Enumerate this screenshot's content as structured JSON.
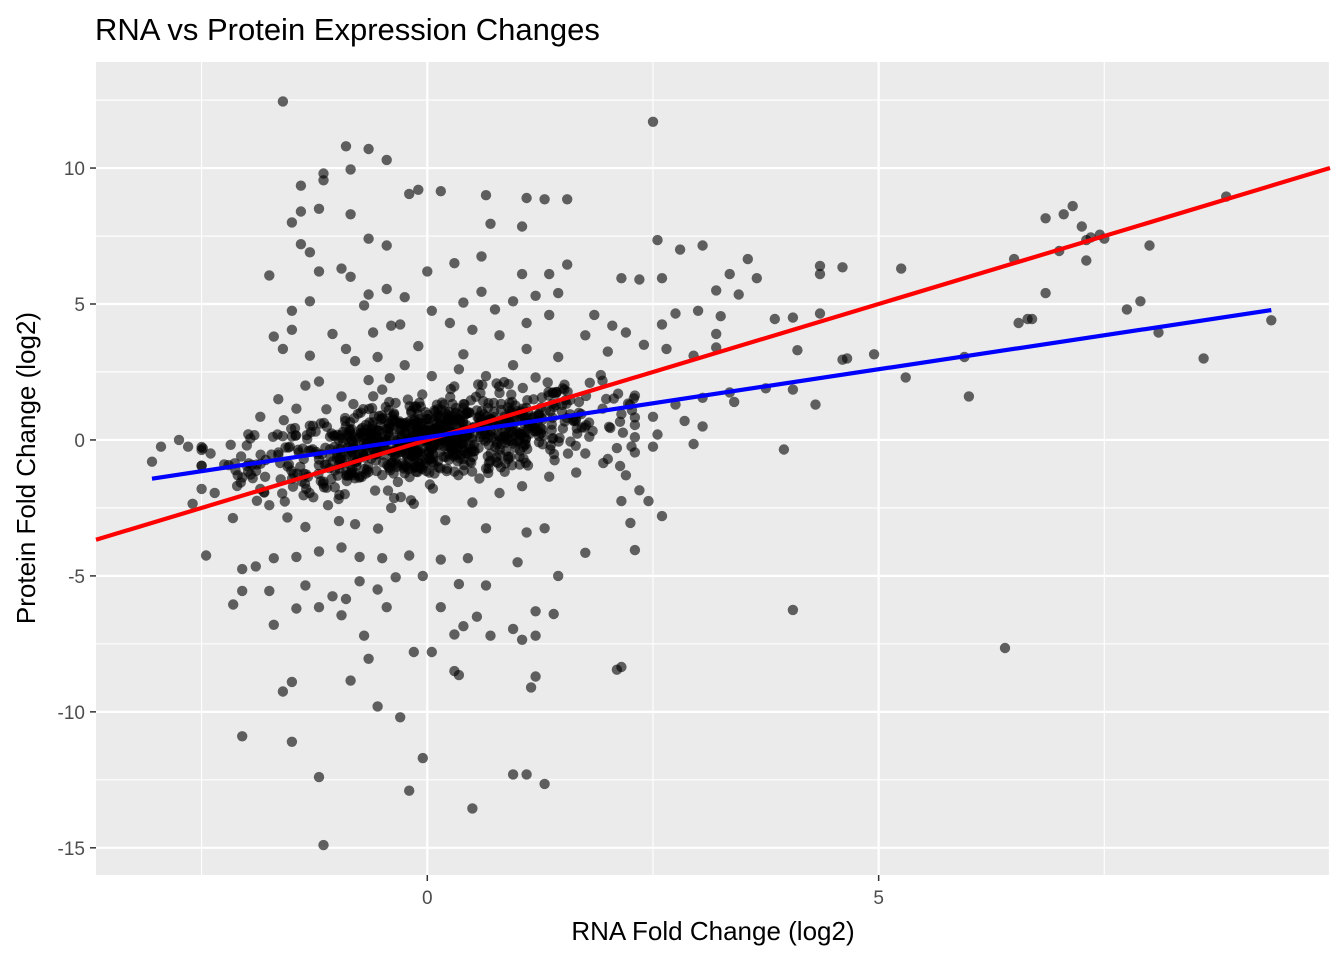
{
  "chart_data": {
    "type": "scatter",
    "title": "RNA vs Protein Expression Changes",
    "xlabel": "RNA Fold Change (log2)",
    "ylabel": "Protein Fold Change (log2)",
    "xlim": [
      -3.67,
      10.0
    ],
    "ylim": [
      -16.0,
      13.9
    ],
    "x_ticks": [
      0,
      5
    ],
    "y_ticks": [
      -15,
      -10,
      -5,
      0,
      5,
      10
    ],
    "grid": true,
    "point_color": "#000000",
    "point_opacity": 0.6,
    "fit_lines": [
      {
        "color": "#ff0000",
        "slope": 1.0,
        "intercept": 0.0,
        "x_range": [
          -3.67,
          10.0
        ]
      },
      {
        "color": "#0000ff",
        "slope": 0.5,
        "intercept": 0.1,
        "x_range": [
          -3.05,
          9.35
        ]
      }
    ],
    "points": [
      [
        -1.6,
        12.45
      ],
      [
        2.5,
        11.7
      ],
      [
        -0.9,
        10.8
      ],
      [
        -0.65,
        10.7
      ],
      [
        -0.45,
        10.3
      ],
      [
        -0.85,
        9.95
      ],
      [
        -1.15,
        9.8
      ],
      [
        -1.15,
        9.55
      ],
      [
        -1.4,
        9.35
      ],
      [
        -0.2,
        9.05
      ],
      [
        -0.1,
        9.2
      ],
      [
        0.15,
        9.15
      ],
      [
        0.65,
        9.0
      ],
      [
        1.1,
        8.9
      ],
      [
        1.3,
        8.85
      ],
      [
        1.55,
        8.85
      ],
      [
        -1.4,
        8.4
      ],
      [
        -1.2,
        8.5
      ],
      [
        -0.85,
        8.3
      ],
      [
        -1.5,
        8.0
      ],
      [
        0.7,
        7.95
      ],
      [
        1.05,
        7.85
      ],
      [
        -1.4,
        7.2
      ],
      [
        -1.3,
        6.9
      ],
      [
        -0.65,
        7.4
      ],
      [
        -0.45,
        7.15
      ],
      [
        2.55,
        7.35
      ],
      [
        2.8,
        7.0
      ],
      [
        3.05,
        7.15
      ],
      [
        3.55,
        6.65
      ],
      [
        -1.2,
        6.2
      ],
      [
        -0.95,
        6.3
      ],
      [
        0.0,
        6.2
      ],
      [
        0.3,
        6.5
      ],
      [
        0.6,
        6.75
      ],
      [
        1.05,
        6.1
      ],
      [
        1.35,
        6.1
      ],
      [
        1.55,
        6.45
      ],
      [
        2.15,
        5.95
      ],
      [
        2.35,
        5.9
      ],
      [
        2.6,
        5.95
      ],
      [
        3.35,
        6.1
      ],
      [
        3.65,
        5.95
      ],
      [
        4.35,
        6.4
      ],
      [
        4.35,
        6.1
      ],
      [
        4.6,
        6.35
      ],
      [
        5.25,
        6.3
      ],
      [
        -1.75,
        6.05
      ],
      [
        -0.85,
        6.0
      ],
      [
        -0.65,
        5.35
      ],
      [
        -0.45,
        5.55
      ],
      [
        -0.25,
        5.25
      ],
      [
        0.4,
        5.05
      ],
      [
        0.6,
        5.45
      ],
      [
        0.95,
        5.1
      ],
      [
        1.2,
        5.3
      ],
      [
        1.45,
        5.4
      ],
      [
        3.2,
        5.5
      ],
      [
        3.45,
        5.35
      ],
      [
        -1.3,
        5.1
      ],
      [
        -1.5,
        4.75
      ],
      [
        -0.7,
        4.95
      ],
      [
        0.05,
        4.75
      ],
      [
        0.25,
        4.3
      ],
      [
        0.75,
        4.8
      ],
      [
        1.1,
        4.3
      ],
      [
        1.35,
        4.6
      ],
      [
        1.85,
        4.6
      ],
      [
        2.05,
        4.2
      ],
      [
        2.75,
        4.65
      ],
      [
        3.0,
        4.75
      ],
      [
        3.25,
        4.55
      ],
      [
        3.85,
        4.45
      ],
      [
        4.05,
        4.5
      ],
      [
        4.35,
        4.65
      ],
      [
        -1.7,
        3.8
      ],
      [
        -1.5,
        4.05
      ],
      [
        -1.05,
        3.9
      ],
      [
        -0.6,
        3.95
      ],
      [
        -0.4,
        4.2
      ],
      [
        -0.3,
        4.25
      ],
      [
        0.5,
        4.05
      ],
      [
        0.8,
        3.85
      ],
      [
        1.75,
        3.85
      ],
      [
        2.2,
        3.95
      ],
      [
        2.6,
        4.25
      ],
      [
        3.2,
        3.9
      ],
      [
        -1.6,
        3.35
      ],
      [
        -1.3,
        3.1
      ],
      [
        -0.9,
        3.35
      ],
      [
        -0.55,
        3.05
      ],
      [
        -0.1,
        3.45
      ],
      [
        0.4,
        3.15
      ],
      [
        1.1,
        3.35
      ],
      [
        1.45,
        3.05
      ],
      [
        2.0,
        3.25
      ],
      [
        2.4,
        3.5
      ],
      [
        2.65,
        3.35
      ],
      [
        2.95,
        3.1
      ],
      [
        3.2,
        3.4
      ],
      [
        4.1,
        3.3
      ],
      [
        4.65,
        3.0
      ],
      [
        4.95,
        3.15
      ],
      [
        5.95,
        3.05
      ],
      [
        4.6,
        2.95
      ],
      [
        5.3,
        2.3
      ],
      [
        6.0,
        1.6
      ],
      [
        4.3,
        1.3
      ],
      [
        4.05,
        1.85
      ],
      [
        3.75,
        1.9
      ],
      [
        3.35,
        1.75
      ],
      [
        3.05,
        1.55
      ],
      [
        2.75,
        1.3
      ],
      [
        2.5,
        0.85
      ],
      [
        2.3,
        0.55
      ],
      [
        2.15,
        0.95
      ],
      [
        2.3,
        0.1
      ],
      [
        2.55,
        0.2
      ],
      [
        2.95,
        -0.15
      ],
      [
        3.05,
        0.5
      ],
      [
        2.5,
        -0.25
      ],
      [
        2.1,
        -0.3
      ],
      [
        2.85,
        0.7
      ],
      [
        3.4,
        1.4
      ],
      [
        1.75,
        -0.5
      ],
      [
        2.0,
        -0.7
      ],
      [
        2.2,
        -1.3
      ],
      [
        2.35,
        -1.85
      ],
      [
        2.15,
        -2.25
      ],
      [
        2.45,
        -2.25
      ],
      [
        2.6,
        -2.8
      ],
      [
        2.25,
        -3.05
      ],
      [
        2.3,
        -4.05
      ],
      [
        1.75,
        -4.15
      ],
      [
        1.45,
        -5.0
      ],
      [
        1.1,
        -3.4
      ],
      [
        1.3,
        -3.25
      ],
      [
        1.0,
        -4.5
      ],
      [
        0.65,
        -3.25
      ],
      [
        0.45,
        -4.35
      ],
      [
        0.15,
        -4.4
      ],
      [
        -0.2,
        -4.25
      ],
      [
        -0.5,
        -4.35
      ],
      [
        -0.75,
        -4.3
      ],
      [
        -0.95,
        -3.95
      ],
      [
        -1.2,
        -4.1
      ],
      [
        -1.45,
        -4.3
      ],
      [
        -1.7,
        -4.35
      ],
      [
        -1.9,
        -4.65
      ],
      [
        -2.05,
        -4.75
      ],
      [
        -2.45,
        -4.25
      ],
      [
        -1.75,
        -5.55
      ],
      [
        -2.05,
        -5.55
      ],
      [
        -2.15,
        -6.05
      ],
      [
        -1.7,
        -6.8
      ],
      [
        -1.35,
        -5.35
      ],
      [
        -1.45,
        -6.2
      ],
      [
        -1.05,
        -5.75
      ],
      [
        -1.2,
        -6.15
      ],
      [
        -0.9,
        -5.85
      ],
      [
        -0.95,
        -6.45
      ],
      [
        -0.55,
        -5.5
      ],
      [
        -0.75,
        -5.2
      ],
      [
        -0.35,
        -5.05
      ],
      [
        -0.05,
        -5.0
      ],
      [
        0.35,
        -5.3
      ],
      [
        -0.45,
        -6.15
      ],
      [
        0.15,
        -6.15
      ],
      [
        0.65,
        -5.35
      ],
      [
        0.55,
        -6.5
      ],
      [
        0.3,
        -7.15
      ],
      [
        0.4,
        -6.85
      ],
      [
        0.7,
        -7.2
      ],
      [
        1.2,
        -6.3
      ],
      [
        0.95,
        -6.95
      ],
      [
        1.05,
        -7.35
      ],
      [
        1.2,
        -7.2
      ],
      [
        1.4,
        -6.4
      ],
      [
        -0.65,
        -8.05
      ],
      [
        -0.15,
        -7.8
      ],
      [
        0.05,
        -7.8
      ],
      [
        -0.7,
        -7.2
      ],
      [
        0.3,
        -8.5
      ],
      [
        0.35,
        -8.65
      ],
      [
        1.2,
        -8.7
      ],
      [
        1.15,
        -9.1
      ],
      [
        2.1,
        -8.45
      ],
      [
        2.15,
        -8.35
      ],
      [
        4.05,
        -6.25
      ],
      [
        3.95,
        -0.35
      ],
      [
        6.4,
        -7.65
      ],
      [
        -0.85,
        -8.85
      ],
      [
        -1.6,
        -9.25
      ],
      [
        -1.5,
        -8.9
      ],
      [
        -0.55,
        -9.8
      ],
      [
        -0.3,
        -10.2
      ],
      [
        -0.05,
        -11.7
      ],
      [
        -2.05,
        -10.9
      ],
      [
        -1.5,
        -11.1
      ],
      [
        -1.2,
        -12.4
      ],
      [
        -0.2,
        -12.9
      ],
      [
        0.95,
        -12.3
      ],
      [
        1.1,
        -12.3
      ],
      [
        1.3,
        -12.65
      ],
      [
        0.5,
        -13.55
      ],
      [
        -1.15,
        -14.9
      ],
      [
        -3.05,
        -0.8
      ],
      [
        -2.95,
        -0.25
      ],
      [
        -2.75,
        0.0
      ],
      [
        -2.65,
        -0.25
      ],
      [
        -2.6,
        -2.35
      ],
      [
        -2.4,
        -0.5
      ],
      [
        -2.25,
        -0.9
      ],
      [
        -2.1,
        -1.3
      ],
      [
        -2.0,
        -0.2
      ],
      [
        -1.85,
        0.85
      ],
      [
        -1.85,
        -1.8
      ],
      [
        -1.75,
        -2.4
      ],
      [
        -1.65,
        1.5
      ],
      [
        -1.55,
        -2.85
      ],
      [
        -1.45,
        1.15
      ],
      [
        -1.35,
        2.0
      ],
      [
        -1.35,
        -3.2
      ],
      [
        -1.2,
        2.15
      ],
      [
        -1.1,
        -2.4
      ],
      [
        -0.95,
        1.6
      ],
      [
        -0.8,
        2.9
      ],
      [
        -0.8,
        -3.1
      ],
      [
        -0.65,
        2.2
      ],
      [
        -0.5,
        1.85
      ],
      [
        -0.4,
        -2.5
      ],
      [
        -0.25,
        2.75
      ],
      [
        -0.15,
        -2.35
      ],
      [
        0.05,
        2.35
      ],
      [
        0.2,
        -2.95
      ],
      [
        0.35,
        2.6
      ],
      [
        0.5,
        -2.3
      ],
      [
        0.65,
        2.35
      ],
      [
        0.8,
        -1.95
      ],
      [
        0.95,
        2.75
      ],
      [
        1.05,
        -1.7
      ],
      [
        1.2,
        2.3
      ],
      [
        1.35,
        -1.35
      ],
      [
        1.5,
        1.9
      ],
      [
        1.65,
        -1.2
      ],
      [
        1.8,
        2.1
      ],
      [
        1.95,
        -0.85
      ],
      [
        0.1,
        0.0
      ],
      [
        6.5,
        6.65
      ],
      [
        6.55,
        4.3
      ],
      [
        6.65,
        4.45
      ],
      [
        6.7,
        4.45
      ],
      [
        6.85,
        5.4
      ],
      [
        6.85,
        8.15
      ],
      [
        7.0,
        6.95
      ],
      [
        7.05,
        8.3
      ],
      [
        7.15,
        8.6
      ],
      [
        7.25,
        7.85
      ],
      [
        7.3,
        7.35
      ],
      [
        7.3,
        6.6
      ],
      [
        7.35,
        7.45
      ],
      [
        7.45,
        7.55
      ],
      [
        7.5,
        7.4
      ],
      [
        7.75,
        4.8
      ],
      [
        7.9,
        5.1
      ],
      [
        8.1,
        3.95
      ],
      [
        8.0,
        7.15
      ],
      [
        8.6,
        3.0
      ],
      [
        8.85,
        8.95
      ],
      [
        9.35,
        4.4
      ]
    ]
  }
}
